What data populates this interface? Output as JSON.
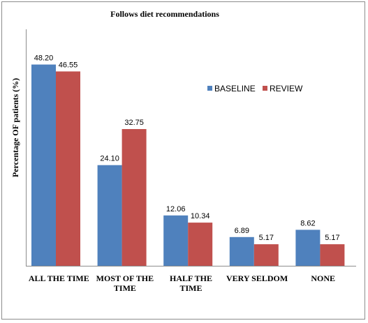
{
  "chart_data": {
    "type": "bar",
    "title": "Follows diet recommendations",
    "xlabel": "",
    "ylabel": "Percentage OF patients (%)",
    "categories": [
      [
        "ALL THE TIME"
      ],
      [
        "MOST OF THE",
        "TIME"
      ],
      [
        "HALF THE",
        "TIME"
      ],
      [
        "VERY SELDOM"
      ],
      [
        "NONE"
      ]
    ],
    "series": [
      {
        "name": "BASELINE",
        "color": "#4F81BD",
        "values": [
          48.2,
          24.1,
          12.06,
          6.89,
          8.62
        ],
        "labels": [
          "48.20",
          "24.10",
          "12.06",
          "6.89",
          "8.62"
        ]
      },
      {
        "name": "REVIEW",
        "color": "#C0504D",
        "values": [
          46.55,
          32.75,
          10.34,
          5.17,
          5.17
        ],
        "labels": [
          "46.55",
          "32.75",
          "10.34",
          "5.17",
          "5.17"
        ]
      }
    ],
    "ylim": [
      0,
      55
    ],
    "grid": false,
    "legend": "right"
  }
}
